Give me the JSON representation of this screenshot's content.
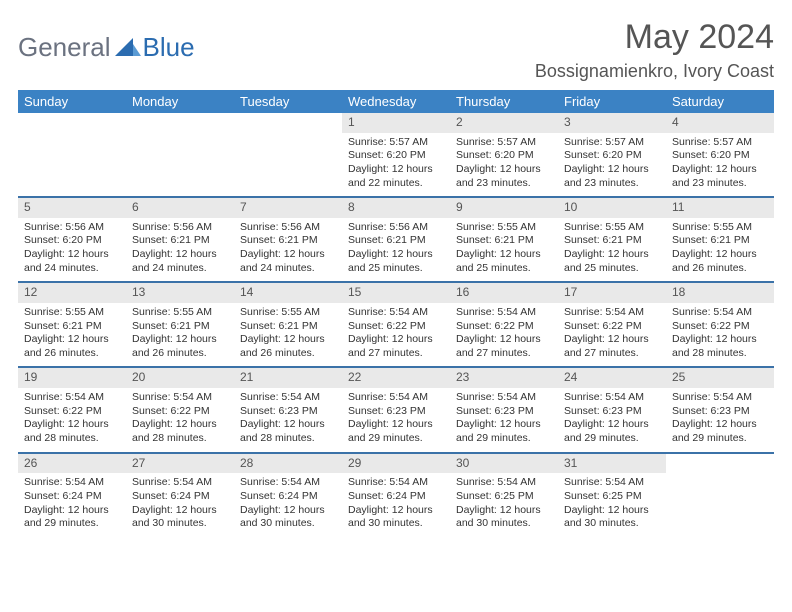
{
  "brand": {
    "part1": "General",
    "part2": "Blue"
  },
  "title": "May 2024",
  "location": "Bossignamienkro, Ivory Coast",
  "colors": {
    "header_bg": "#3b82c4",
    "header_text": "#ffffff",
    "daynum_bg": "#e9e9e9",
    "week_border": "#3b72a8",
    "text": "#333333",
    "logo_gray": "#6b7280",
    "logo_blue": "#2b6cb0"
  },
  "dayHeaders": [
    "Sunday",
    "Monday",
    "Tuesday",
    "Wednesday",
    "Thursday",
    "Friday",
    "Saturday"
  ],
  "weeks": [
    [
      {
        "n": "",
        "sr": "",
        "ss": "",
        "dl": ""
      },
      {
        "n": "",
        "sr": "",
        "ss": "",
        "dl": ""
      },
      {
        "n": "",
        "sr": "",
        "ss": "",
        "dl": ""
      },
      {
        "n": "1",
        "sr": "5:57 AM",
        "ss": "6:20 PM",
        "dl": "12 hours and 22 minutes."
      },
      {
        "n": "2",
        "sr": "5:57 AM",
        "ss": "6:20 PM",
        "dl": "12 hours and 23 minutes."
      },
      {
        "n": "3",
        "sr": "5:57 AM",
        "ss": "6:20 PM",
        "dl": "12 hours and 23 minutes."
      },
      {
        "n": "4",
        "sr": "5:57 AM",
        "ss": "6:20 PM",
        "dl": "12 hours and 23 minutes."
      }
    ],
    [
      {
        "n": "5",
        "sr": "5:56 AM",
        "ss": "6:20 PM",
        "dl": "12 hours and 24 minutes."
      },
      {
        "n": "6",
        "sr": "5:56 AM",
        "ss": "6:21 PM",
        "dl": "12 hours and 24 minutes."
      },
      {
        "n": "7",
        "sr": "5:56 AM",
        "ss": "6:21 PM",
        "dl": "12 hours and 24 minutes."
      },
      {
        "n": "8",
        "sr": "5:56 AM",
        "ss": "6:21 PM",
        "dl": "12 hours and 25 minutes."
      },
      {
        "n": "9",
        "sr": "5:55 AM",
        "ss": "6:21 PM",
        "dl": "12 hours and 25 minutes."
      },
      {
        "n": "10",
        "sr": "5:55 AM",
        "ss": "6:21 PM",
        "dl": "12 hours and 25 minutes."
      },
      {
        "n": "11",
        "sr": "5:55 AM",
        "ss": "6:21 PM",
        "dl": "12 hours and 26 minutes."
      }
    ],
    [
      {
        "n": "12",
        "sr": "5:55 AM",
        "ss": "6:21 PM",
        "dl": "12 hours and 26 minutes."
      },
      {
        "n": "13",
        "sr": "5:55 AM",
        "ss": "6:21 PM",
        "dl": "12 hours and 26 minutes."
      },
      {
        "n": "14",
        "sr": "5:55 AM",
        "ss": "6:21 PM",
        "dl": "12 hours and 26 minutes."
      },
      {
        "n": "15",
        "sr": "5:54 AM",
        "ss": "6:22 PM",
        "dl": "12 hours and 27 minutes."
      },
      {
        "n": "16",
        "sr": "5:54 AM",
        "ss": "6:22 PM",
        "dl": "12 hours and 27 minutes."
      },
      {
        "n": "17",
        "sr": "5:54 AM",
        "ss": "6:22 PM",
        "dl": "12 hours and 27 minutes."
      },
      {
        "n": "18",
        "sr": "5:54 AM",
        "ss": "6:22 PM",
        "dl": "12 hours and 28 minutes."
      }
    ],
    [
      {
        "n": "19",
        "sr": "5:54 AM",
        "ss": "6:22 PM",
        "dl": "12 hours and 28 minutes."
      },
      {
        "n": "20",
        "sr": "5:54 AM",
        "ss": "6:22 PM",
        "dl": "12 hours and 28 minutes."
      },
      {
        "n": "21",
        "sr": "5:54 AM",
        "ss": "6:23 PM",
        "dl": "12 hours and 28 minutes."
      },
      {
        "n": "22",
        "sr": "5:54 AM",
        "ss": "6:23 PM",
        "dl": "12 hours and 29 minutes."
      },
      {
        "n": "23",
        "sr": "5:54 AM",
        "ss": "6:23 PM",
        "dl": "12 hours and 29 minutes."
      },
      {
        "n": "24",
        "sr": "5:54 AM",
        "ss": "6:23 PM",
        "dl": "12 hours and 29 minutes."
      },
      {
        "n": "25",
        "sr": "5:54 AM",
        "ss": "6:23 PM",
        "dl": "12 hours and 29 minutes."
      }
    ],
    [
      {
        "n": "26",
        "sr": "5:54 AM",
        "ss": "6:24 PM",
        "dl": "12 hours and 29 minutes."
      },
      {
        "n": "27",
        "sr": "5:54 AM",
        "ss": "6:24 PM",
        "dl": "12 hours and 30 minutes."
      },
      {
        "n": "28",
        "sr": "5:54 AM",
        "ss": "6:24 PM",
        "dl": "12 hours and 30 minutes."
      },
      {
        "n": "29",
        "sr": "5:54 AM",
        "ss": "6:24 PM",
        "dl": "12 hours and 30 minutes."
      },
      {
        "n": "30",
        "sr": "5:54 AM",
        "ss": "6:25 PM",
        "dl": "12 hours and 30 minutes."
      },
      {
        "n": "31",
        "sr": "5:54 AM",
        "ss": "6:25 PM",
        "dl": "12 hours and 30 minutes."
      },
      {
        "n": "",
        "sr": "",
        "ss": "",
        "dl": ""
      }
    ]
  ],
  "labels": {
    "sunrise": "Sunrise:",
    "sunset": "Sunset:",
    "daylight": "Daylight:"
  }
}
